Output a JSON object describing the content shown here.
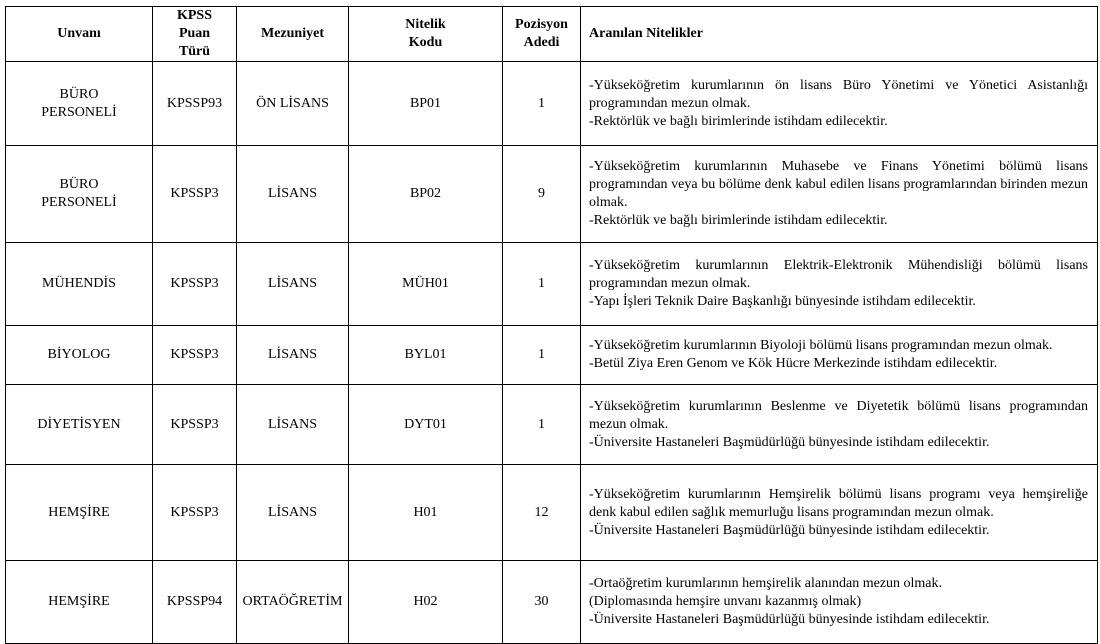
{
  "table": {
    "headers": [
      "Unvanı",
      "KPSS Puan Türü",
      "Mezuniyet",
      "Nitelik Kodu",
      "Pozisyon Adedi",
      "Aranılan Nitelikler"
    ],
    "rows": [
      {
        "unvan": "BÜRO PERSONELİ",
        "kpss": "KPSSP93",
        "mezuniyet": "ÖN LİSANS",
        "kod": "BP01",
        "adet": "1",
        "nitelikler": [
          "-Yükseköğretim kurumlarının ön lisans Büro Yönetimi ve Yönetici Asistanlığı programından mezun olmak.",
          "-Rektörlük ve bağlı birimlerinde istihdam edilecektir."
        ]
      },
      {
        "unvan": "BÜRO PERSONELİ",
        "kpss": "KPSSP3",
        "mezuniyet": "LİSANS",
        "kod": "BP02",
        "adet": "9",
        "nitelikler": [
          "-Yükseköğretim kurumlarının Muhasebe ve Finans Yönetimi bölümü lisans programından veya bu bölüme denk kabul edilen lisans programlarından birinden mezun olmak.",
          "-Rektörlük ve bağlı birimlerinde istihdam edilecektir."
        ]
      },
      {
        "unvan": "MÜHENDİS",
        "kpss": "KPSSP3",
        "mezuniyet": "LİSANS",
        "kod": "MÜH01",
        "adet": "1",
        "nitelikler": [
          "-Yükseköğretim kurumlarının Elektrik-Elektronik Mühendisliği bölümü lisans programından mezun olmak.",
          "-Yapı İşleri Teknik Daire Başkanlığı bünyesinde istihdam edilecektir."
        ]
      },
      {
        "unvan": "BİYOLOG",
        "kpss": "KPSSP3",
        "mezuniyet": "LİSANS",
        "kod": "BYL01",
        "adet": "1",
        "nitelikler": [
          "-Yükseköğretim kurumlarının Biyoloji bölümü lisans programından mezun olmak.",
          "-Betül Ziya Eren Genom ve Kök Hücre Merkezinde istihdam edilecektir."
        ]
      },
      {
        "unvan": "DİYETİSYEN",
        "kpss": "KPSSP3",
        "mezuniyet": "LİSANS",
        "kod": "DYT01",
        "adet": "1",
        "nitelikler": [
          "-Yükseköğretim kurumlarının Beslenme ve Diyetetik bölümü lisans programından mezun olmak.",
          "-Üniversite Hastaneleri Başmüdürlüğü bünyesinde istihdam edilecektir."
        ]
      },
      {
        "unvan": "HEMŞİRE",
        "kpss": "KPSSP3",
        "mezuniyet": "LİSANS",
        "kod": "H01",
        "adet": "12",
        "nitelikler": [
          "-Yükseköğretim kurumlarının Hemşirelik bölümü lisans programı veya hemşireliğe denk kabul edilen sağlık memurluğu lisans programından mezun olmak.",
          "-Üniversite Hastaneleri Başmüdürlüğü bünyesinde istihdam edilecektir."
        ]
      },
      {
        "unvan": "HEMŞİRE",
        "kpss": "KPSSP94",
        "mezuniyet": "ORTAÖĞRETİM",
        "kod": "H02",
        "adet": "30",
        "nitelikler": [
          "-Ortaöğretim kurumlarının hemşirelik alanından mezun olmak.",
          "(Diplomasında hemşire unvanı kazanmış olmak)",
          "-Üniversite Hastaneleri Başmüdürlüğü bünyesinde istihdam edilecektir."
        ]
      }
    ]
  }
}
